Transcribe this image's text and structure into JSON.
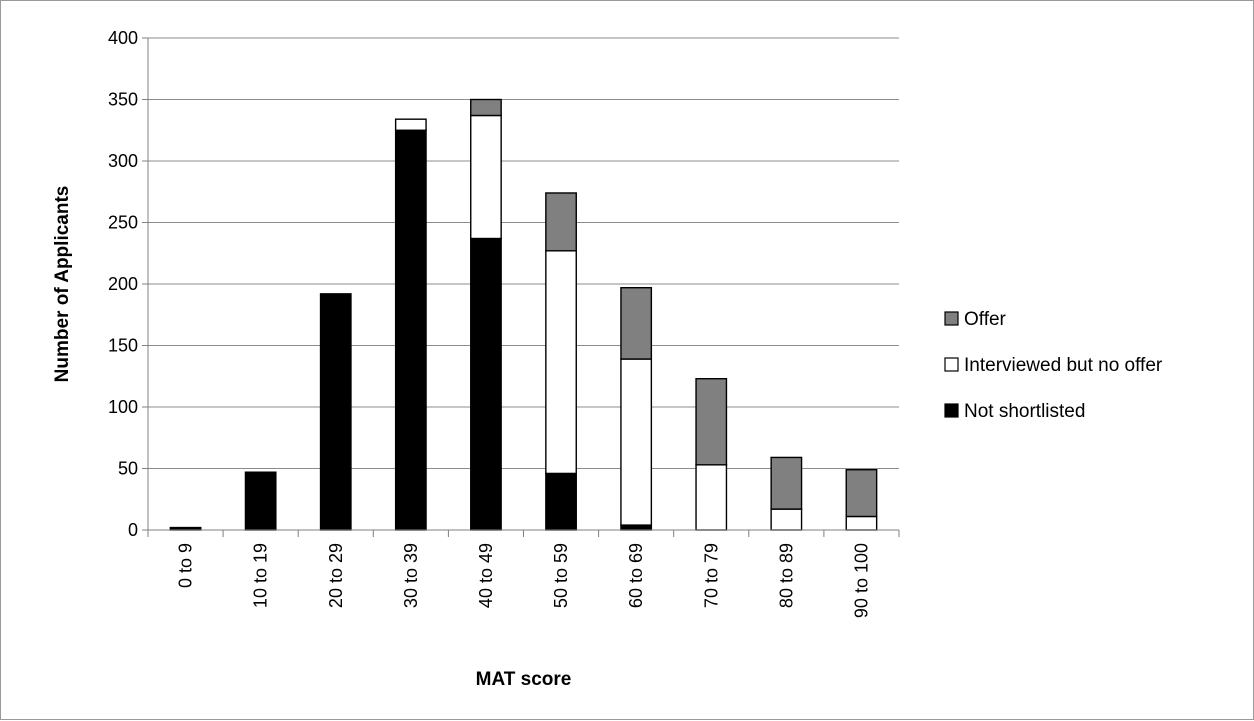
{
  "chart_data": {
    "type": "bar",
    "stacked": true,
    "categories": [
      "0 to 9",
      "10 to 19",
      "20 to 29",
      "30 to 39",
      "40 to 49",
      "50 to 59",
      "60 to 69",
      "70 to 79",
      "80 to 89",
      "90 to 100"
    ],
    "series": [
      {
        "name": "Not shortlisted",
        "color": "#000000",
        "values": [
          2,
          47,
          192,
          325,
          237,
          46,
          4,
          0,
          0,
          0
        ]
      },
      {
        "name": "Interviewed but no offer",
        "color": "#ffffff",
        "values": [
          0,
          0,
          0,
          9,
          100,
          181,
          135,
          53,
          17,
          11
        ]
      },
      {
        "name": "Offer",
        "color": "#808080",
        "values": [
          0,
          0,
          0,
          0,
          13,
          47,
          58,
          70,
          42,
          38
        ]
      }
    ],
    "xlabel": "MAT score",
    "ylabel": "Number of Applicants",
    "ylim": [
      0,
      400
    ],
    "yticks": [
      0,
      50,
      100,
      150,
      200,
      250,
      300,
      350,
      400
    ],
    "grid": true,
    "legend_position": "right"
  }
}
